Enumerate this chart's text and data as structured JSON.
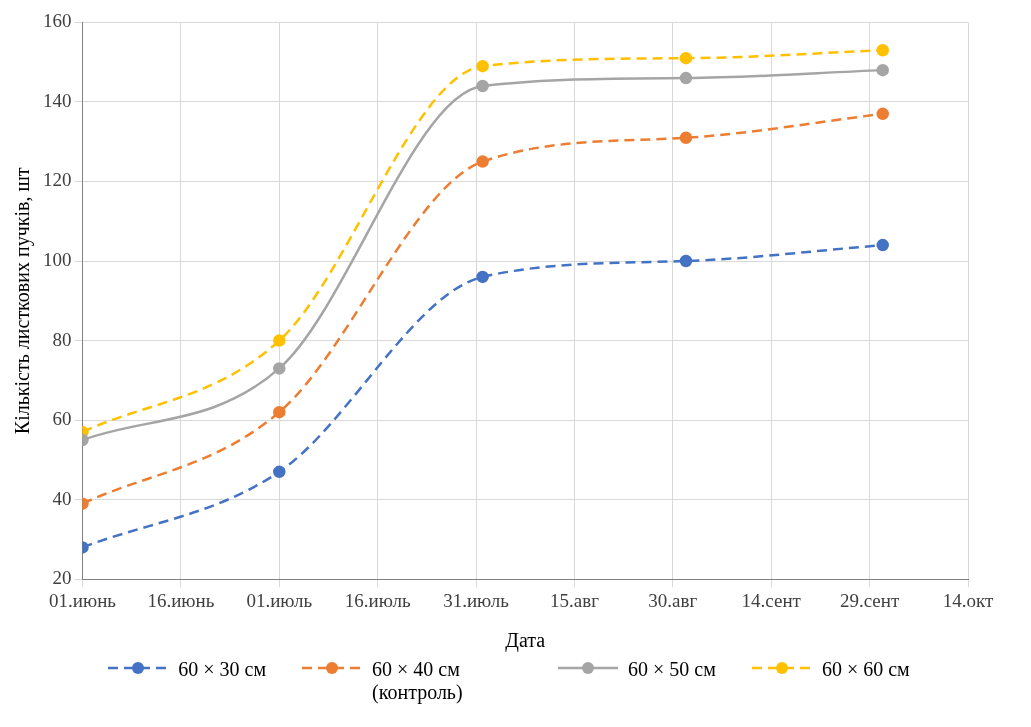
{
  "chart_data": {
    "type": "line",
    "xlabel": "Дата",
    "ylabel": "Кількість листкових пучків, шт",
    "x": [
      "--06-01",
      "--07-01",
      "--08-01",
      "--09-01",
      "--10-01"
    ],
    "series": [
      {
        "name": "60 × 30 см",
        "color": "#4472c4",
        "values": [
          28,
          47,
          96,
          100,
          104
        ],
        "line_style": "dashed"
      },
      {
        "name": "60 × 40 см (контроль)",
        "color": "#ed7d31",
        "values": [
          39,
          62,
          125,
          131,
          137
        ],
        "line_style": "dashed"
      },
      {
        "name": "60 × 50 см",
        "color": "#a5a5a5",
        "values": [
          55,
          73,
          144,
          146,
          148
        ],
        "line_style": "solid"
      },
      {
        "name": "60 × 60 см",
        "color": "#ffc000",
        "values": [
          57,
          80,
          149,
          151,
          153
        ],
        "line_style": "dashed"
      }
    ],
    "xlim": [
      "--06-01",
      "--10-14"
    ],
    "xticks": [
      {
        "value": "--06-01",
        "label": "01.июнь"
      },
      {
        "value": "--06-16",
        "label": "16.июнь"
      },
      {
        "value": "--07-01",
        "label": "01.июль"
      },
      {
        "value": "--07-16",
        "label": "16.июль"
      },
      {
        "value": "--07-31",
        "label": "31.июль"
      },
      {
        "value": "--08-15",
        "label": "15.авг"
      },
      {
        "value": "--08-30",
        "label": "30.авг"
      },
      {
        "value": "--09-14",
        "label": "14.сент"
      },
      {
        "value": "--09-29",
        "label": "29.сент"
      },
      {
        "value": "--10-14",
        "label": "14.окт"
      }
    ],
    "ylim": [
      20,
      160
    ],
    "yticks": [
      20,
      40,
      60,
      80,
      100,
      120,
      140,
      160
    ],
    "grid": true,
    "legend": "bottom",
    "marker": "circle"
  }
}
